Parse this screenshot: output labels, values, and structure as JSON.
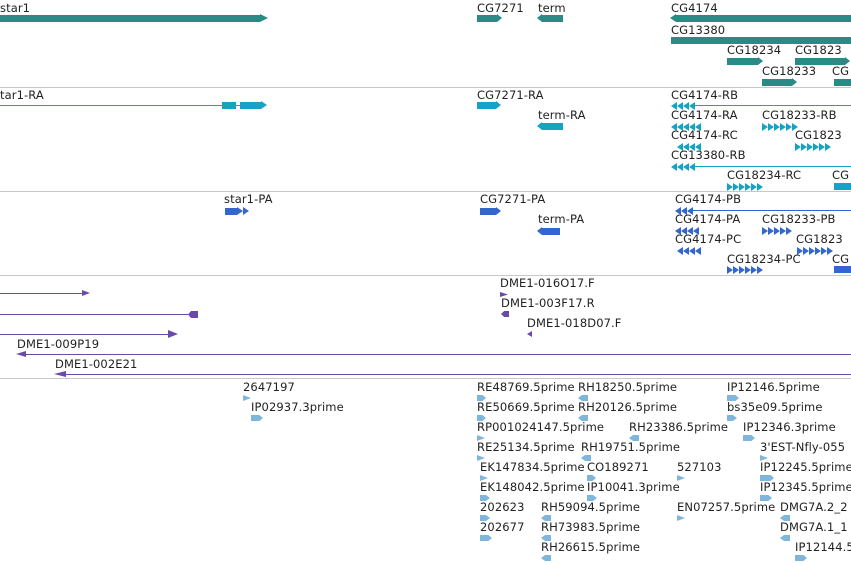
{
  "colors": {
    "gene": "#2a8a86",
    "transcript": "#15a3c4",
    "protein": "#3367cf",
    "clone": "#6a4aa8",
    "est": "#7fb6dc",
    "divider": "#c8c8c8"
  },
  "tracks": {
    "genes": {
      "labels": [
        "star1",
        "CG7271",
        "term",
        "CG4174",
        "CG13380",
        "CG18234",
        "CG1823",
        "CG18233"
      ]
    },
    "transcripts": {
      "labels": [
        "tar1-RA",
        "CG7271-RA",
        "term-RA",
        "CG4174-RB",
        "CG4174-RA",
        "CG18233-RB",
        "CG4174-RC",
        "CG1823",
        "CG13380-RB",
        "CG18234-RC",
        "CG"
      ]
    },
    "proteins": {
      "labels": [
        "star1-PA",
        "CG7271-PA",
        "term-PA",
        "CG4174-PB",
        "CG4174-PA",
        "CG18233-PB",
        "CG4174-PC",
        "CG1823",
        "CG18234-PC",
        "CG"
      ]
    },
    "clones": {
      "labels": [
        "DME1-016O17.F",
        "DME1-003F17.R",
        "DME1-018D07.F",
        "DME1-009P19",
        "DME1-002E21"
      ]
    },
    "ests": {
      "labels": [
        "2647197",
        "IP02937.3prime",
        "RE48769.5prime",
        "RH18250.5prime",
        "IP12146.5prime",
        "RE50669.5prime",
        "RH20126.5prime",
        "bs35e09.5prime",
        "RP001024147.5prime",
        "RH23386.5prime",
        "IP12346.3prime",
        "RE25134.5prime",
        "RH19751.5prime",
        "3'EST-Nfly-055",
        "EK147834.5prime",
        "CO189271",
        "527103",
        "IP12245.5prime",
        "EK148042.5prime",
        "IP10041.3prime",
        "IP12345.5prime",
        "202623",
        "RH59094.5prime",
        "EN07257.5prime",
        "DMG7A.2_2",
        "202677",
        "RH73983.5prime",
        "DMG7A.1_1",
        "RH26615.5prime",
        "IP12144.5"
      ]
    }
  }
}
